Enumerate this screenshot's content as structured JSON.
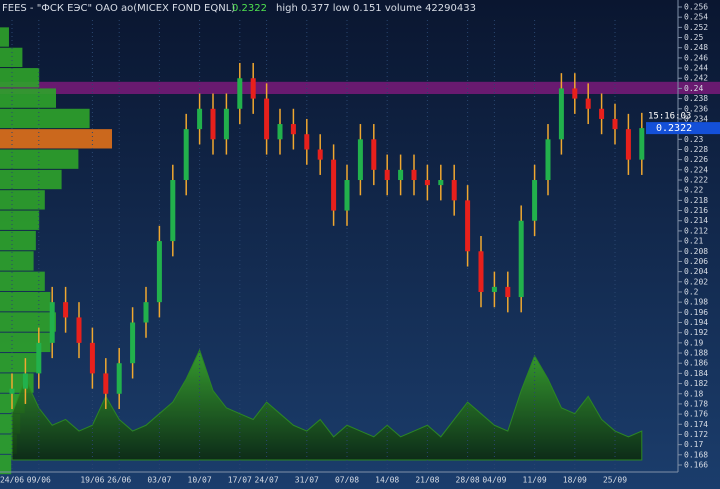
{
  "chart_data": {
    "type": "candlestick",
    "title": "FEES - \"ФСК ЕЭС\" ОАО ао(MICEX FOND EQNL)",
    "subtitle": "high 0.377  low 0.151  volume 42290433",
    "last": 0.2322,
    "time": "15:16:03",
    "categories": [
      "24/06",
      null,
      "09/06",
      null,
      null,
      null,
      "19/06",
      null,
      "26/06",
      null,
      null,
      "03/07",
      null,
      null,
      "10/07",
      null,
      null,
      "17/07",
      null,
      "24/07",
      null,
      null,
      "31/07",
      null,
      null,
      "07/08",
      null,
      null,
      "14/08",
      null,
      null,
      "21/08",
      null,
      null,
      "28/08",
      null,
      "04/09",
      null,
      null,
      "11/09",
      null,
      null,
      "18/09",
      null,
      null,
      "25/09",
      null,
      null
    ],
    "open": [
      0.18,
      0.181,
      0.184,
      0.19,
      0.198,
      0.195,
      0.19,
      0.184,
      0.18,
      0.186,
      0.194,
      0.198,
      0.21,
      0.222,
      0.232,
      0.236,
      0.23,
      0.236,
      0.242,
      0.238,
      0.23,
      0.233,
      0.231,
      0.228,
      0.226,
      0.216,
      0.222,
      0.23,
      0.224,
      0.222,
      0.224,
      0.222,
      0.221,
      0.222,
      0.218,
      0.208,
      0.2,
      0.201,
      0.199,
      0.214,
      0.222,
      0.23,
      0.24,
      0.238,
      0.236,
      0.234,
      0.232,
      0.226
    ],
    "high": [
      0.184,
      0.187,
      0.193,
      0.201,
      0.201,
      0.198,
      0.193,
      0.187,
      0.189,
      0.197,
      0.201,
      0.213,
      0.225,
      0.235,
      0.239,
      0.239,
      0.239,
      0.245,
      0.245,
      0.241,
      0.236,
      0.236,
      0.234,
      0.231,
      0.229,
      0.225,
      0.233,
      0.233,
      0.227,
      0.227,
      0.227,
      0.225,
      0.225,
      0.225,
      0.221,
      0.211,
      0.204,
      0.204,
      0.217,
      0.225,
      0.233,
      0.243,
      0.243,
      0.241,
      0.239,
      0.237,
      0.235,
      0.2352
    ],
    "low": [
      0.177,
      0.178,
      0.181,
      0.187,
      0.192,
      0.187,
      0.181,
      0.177,
      0.177,
      0.183,
      0.191,
      0.195,
      0.207,
      0.219,
      0.229,
      0.227,
      0.227,
      0.233,
      0.235,
      0.227,
      0.227,
      0.228,
      0.225,
      0.223,
      0.213,
      0.213,
      0.219,
      0.221,
      0.219,
      0.219,
      0.219,
      0.218,
      0.218,
      0.215,
      0.205,
      0.197,
      0.197,
      0.196,
      0.196,
      0.211,
      0.219,
      0.227,
      0.235,
      0.233,
      0.231,
      0.229,
      0.223,
      0.223
    ],
    "close": [
      0.181,
      0.184,
      0.19,
      0.198,
      0.195,
      0.19,
      0.184,
      0.18,
      0.186,
      0.194,
      0.198,
      0.21,
      0.222,
      0.232,
      0.236,
      0.23,
      0.236,
      0.242,
      0.238,
      0.23,
      0.233,
      0.231,
      0.228,
      0.226,
      0.216,
      0.222,
      0.23,
      0.224,
      0.222,
      0.224,
      0.222,
      0.221,
      0.222,
      0.218,
      0.208,
      0.2,
      0.201,
      0.199,
      0.214,
      0.222,
      0.23,
      0.24,
      0.238,
      0.236,
      0.234,
      0.232,
      0.226,
      0.2322
    ],
    "volume": [
      40,
      70,
      45,
      30,
      35,
      25,
      30,
      55,
      35,
      25,
      30,
      40,
      50,
      70,
      95,
      60,
      45,
      40,
      35,
      50,
      40,
      30,
      25,
      35,
      20,
      30,
      25,
      20,
      30,
      20,
      25,
      30,
      20,
      35,
      50,
      40,
      30,
      25,
      60,
      90,
      70,
      45,
      40,
      55,
      35,
      25,
      20,
      25
    ],
    "profile_levels": [
      0.166,
      0.17,
      0.174,
      0.178,
      0.182,
      0.186,
      0.19,
      0.194,
      0.198,
      0.202,
      0.206,
      0.21,
      0.214,
      0.218,
      0.222,
      0.226,
      0.23,
      0.234,
      0.238,
      0.242,
      0.246,
      0.25
    ],
    "profile_values": [
      10,
      15,
      18,
      22,
      30,
      35,
      45,
      50,
      45,
      40,
      30,
      32,
      35,
      40,
      55,
      70,
      100,
      80,
      50,
      35,
      20,
      8
    ],
    "band": [
      0.2389,
      0.2413
    ],
    "band_color": "#7a1a7a",
    "up_color": "#22b14c",
    "down_color": "#e8201c",
    "wick_color": "#f0a830",
    "volume_color": "#2e8f1e",
    "profile_color": "#2fa32a",
    "profile_max_color": "#e0701a",
    "ylim": [
      0.166,
      0.256
    ],
    "yticks": [
      0.166,
      0.168,
      0.17,
      0.172,
      0.174,
      0.176,
      0.178,
      0.18,
      0.182,
      0.184,
      0.186,
      0.188,
      0.19,
      0.192,
      0.194,
      0.196,
      0.198,
      0.2,
      0.202,
      0.204,
      0.206,
      0.208,
      0.21,
      0.212,
      0.214,
      0.216,
      0.218,
      0.22,
      0.222,
      0.224,
      0.226,
      0.228,
      0.23,
      0.232,
      0.234,
      0.236,
      0.238,
      0.24,
      0.242,
      0.244,
      0.246,
      0.248,
      0.25,
      0.252,
      0.254,
      0.256
    ]
  }
}
